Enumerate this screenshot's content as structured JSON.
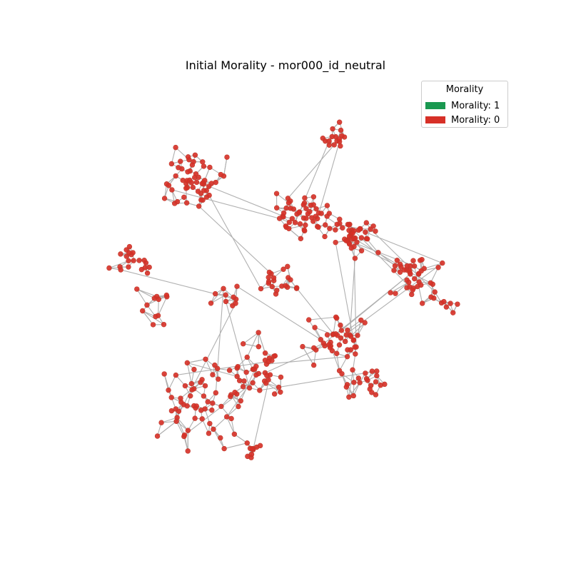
{
  "title": "Initial Morality - mor000_id_neutral",
  "legend": {
    "title": "Morality",
    "items": [
      {
        "label": "Morality: 1",
        "color": "#1a9850"
      },
      {
        "label": "Morality: 0",
        "color": "#d73027"
      }
    ]
  },
  "node_color": "#d73027",
  "edge_color": "#b0b0b0",
  "node_morality": 0
}
